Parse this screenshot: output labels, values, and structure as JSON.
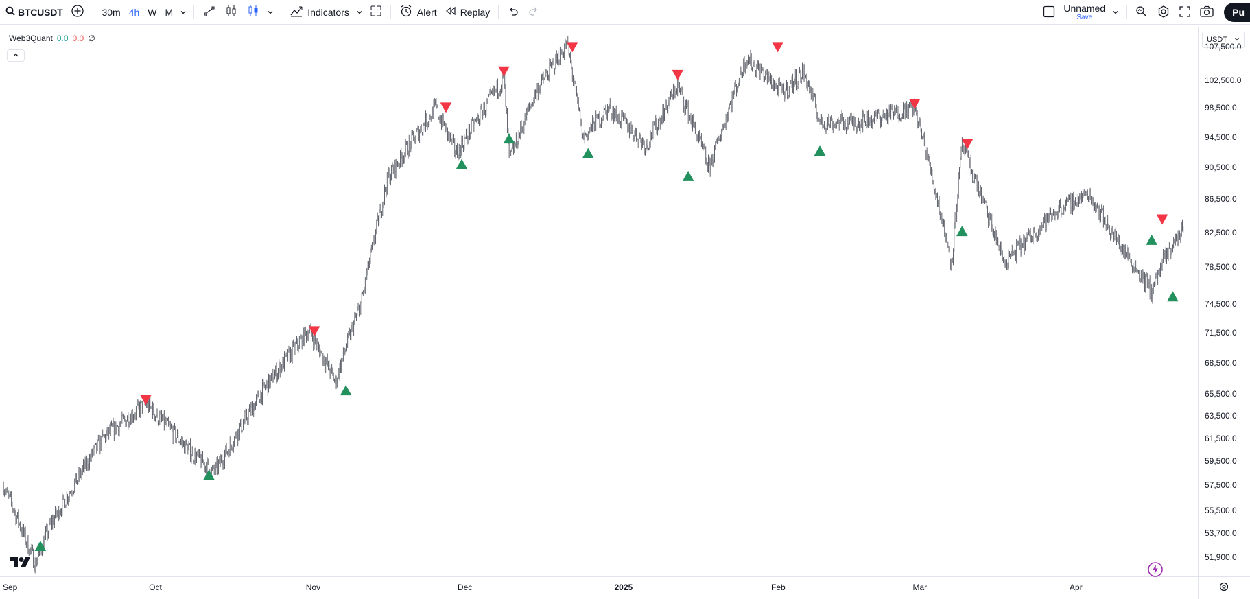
{
  "toolbar": {
    "symbol": "BTCUSDT",
    "timeframes": [
      "30m",
      "4h",
      "W",
      "M"
    ],
    "active_timeframe": "4h",
    "indicators_label": "Indicators",
    "alert_label": "Alert",
    "replay_label": "Replay",
    "layout_name": "Unnamed",
    "save_label": "Save",
    "publish_label": "Pu"
  },
  "legend": {
    "name": "Web3Quant",
    "value_1": "0.0",
    "value_2": "0.0",
    "value_3": "∅"
  },
  "price_axis": {
    "currency": "USDT",
    "labels": [
      "107,500.0",
      "102,500.0",
      "98,500.0",
      "94,500.0",
      "90,500.0",
      "86,500.0",
      "82,500.0",
      "78,500.0",
      "74,500.0",
      "71,500.0",
      "68,500.0",
      "65,500.0",
      "63,500.0",
      "61,500.0",
      "59,500.0",
      "57,500.0",
      "55,500.0",
      "53,700.0",
      "51,900.0"
    ]
  },
  "time_axis": {
    "labels": [
      "Sep",
      "Oct",
      "Nov",
      "Dec",
      "2025",
      "Feb",
      "Mar",
      "Apr"
    ]
  },
  "colors": {
    "candle": "#434651",
    "sell_signal": "#f23645",
    "buy_signal": "#22915e",
    "accent": "#2962ff"
  },
  "chart_data": {
    "type": "line",
    "x": [
      "2024-09-01",
      "2024-09-07",
      "2024-09-10",
      "2024-09-20",
      "2024-09-28",
      "2024-10-06",
      "2024-10-11",
      "2024-10-20",
      "2024-10-29",
      "2024-11-03",
      "2024-11-08",
      "2024-11-13",
      "2024-11-22",
      "2024-11-26",
      "2024-12-05",
      "2024-12-06",
      "2024-12-11",
      "2024-12-17",
      "2024-12-20",
      "2024-12-25",
      "2025-01-01",
      "2025-01-07",
      "2025-01-13",
      "2025-01-20",
      "2025-01-27",
      "2025-01-31",
      "2025-02-03",
      "2025-02-10",
      "2025-02-21",
      "2025-02-28",
      "2025-03-02",
      "2025-03-10",
      "2025-03-20",
      "2025-03-26",
      "2025-04-01",
      "2025-04-07",
      "2025-04-09",
      "2025-04-13"
    ],
    "y": [
      59000,
      53000,
      56000,
      63000,
      66000,
      62000,
      60000,
      67000,
      73000,
      68000,
      76000,
      90000,
      99000,
      93000,
      103000,
      92000,
      101000,
      108000,
      95000,
      99000,
      94000,
      102000,
      91000,
      106000,
      101000,
      104000,
      97000,
      97000,
      99000,
      80000,
      94000,
      80000,
      86000,
      88000,
      82000,
      77000,
      80000,
      84000
    ],
    "signals": {
      "sell": [
        {
          "x": "2024-09-28",
          "y": 66000
        },
        {
          "x": "2024-10-30",
          "y": 72500
        },
        {
          "x": "2024-11-24",
          "y": 98500
        },
        {
          "x": "2024-12-05",
          "y": 103500
        },
        {
          "x": "2024-12-18",
          "y": 107000
        },
        {
          "x": "2025-01-07",
          "y": 103000
        },
        {
          "x": "2025-01-26",
          "y": 107000
        },
        {
          "x": "2025-02-21",
          "y": 99000
        },
        {
          "x": "2025-03-03",
          "y": 93700
        },
        {
          "x": "2025-04-09",
          "y": 84500
        }
      ],
      "buy": [
        {
          "x": "2024-09-08",
          "y": 54700
        },
        {
          "x": "2024-10-10",
          "y": 60300
        },
        {
          "x": "2024-11-05",
          "y": 67700
        },
        {
          "x": "2024-11-27",
          "y": 92300
        },
        {
          "x": "2024-12-06",
          "y": 95600
        },
        {
          "x": "2024-12-21",
          "y": 93700
        },
        {
          "x": "2025-01-09",
          "y": 90800
        },
        {
          "x": "2025-02-03",
          "y": 94000
        },
        {
          "x": "2025-03-02",
          "y": 84200
        },
        {
          "x": "2025-04-07",
          "y": 83200
        },
        {
          "x": "2025-04-11",
          "y": 77000
        }
      ]
    },
    "xlim": [
      "2024-09-01",
      "2025-04-25"
    ],
    "ylim": [
      50500,
      110500
    ],
    "grid": false
  }
}
